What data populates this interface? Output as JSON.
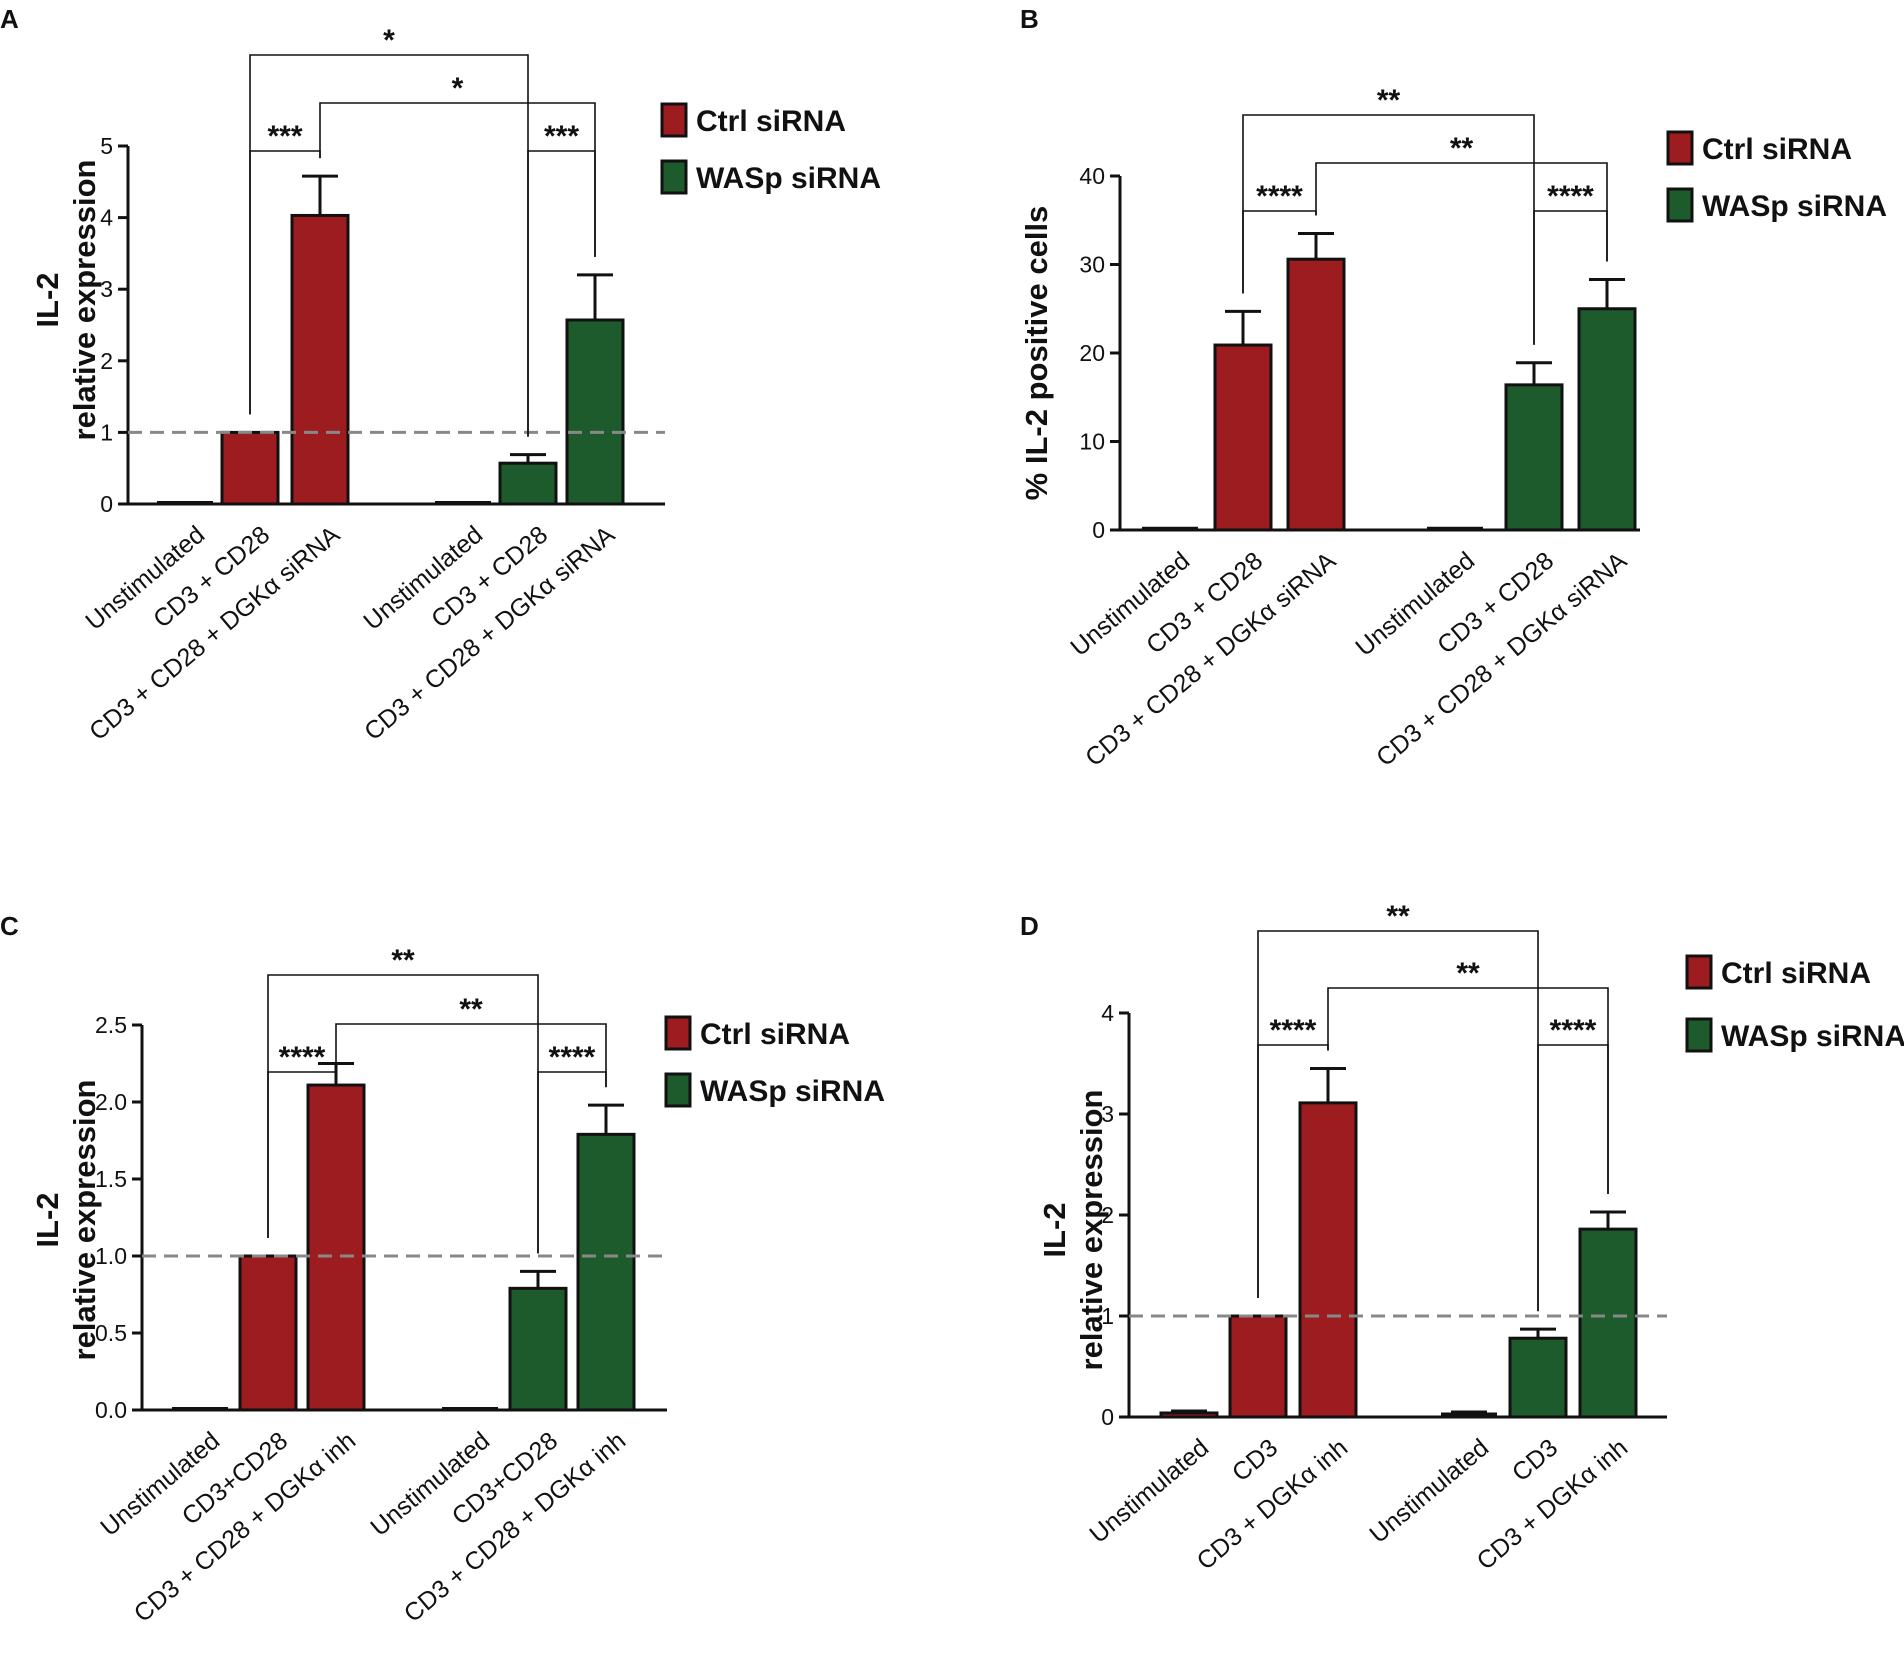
{
  "colors": {
    "ctrl": "#9c1c20",
    "wasp": "#1e5b2c",
    "axis": "#111111",
    "reference_line": "#888888"
  },
  "chart_data": [
    {
      "panel": "A",
      "type": "bar",
      "ylabel_lines": [
        "IL-2",
        "relative expression"
      ],
      "ylim": [
        0,
        5
      ],
      "yticks": [
        "0",
        "1",
        "2",
        "3",
        "4",
        "5"
      ],
      "reference_line": 1,
      "legend": [
        "Ctrl siRNA",
        "WASp siRNA"
      ],
      "categories": [
        "Unstimulated",
        "CD3 + CD28",
        "CD3 + CD28 + DGKα siRNA"
      ],
      "series": [
        {
          "name": "Ctrl siRNA",
          "values": [
            0.01,
            1.0,
            4.03
          ],
          "errors": [
            0.0,
            0.0,
            0.55
          ]
        },
        {
          "name": "WASp siRNA",
          "values": [
            0.0,
            0.57,
            2.57
          ],
          "errors": [
            0.0,
            0.12,
            0.63
          ]
        }
      ],
      "significance": [
        {
          "from": [
            0,
            1
          ],
          "to": [
            1,
            1
          ],
          "label": "*"
        },
        {
          "from": [
            0,
            2
          ],
          "to": [
            1,
            2
          ],
          "label": "*"
        },
        {
          "from": [
            0,
            1
          ],
          "to": [
            0,
            2
          ],
          "label": "***"
        },
        {
          "from": [
            1,
            1
          ],
          "to": [
            1,
            2
          ],
          "label": "***"
        }
      ]
    },
    {
      "panel": "B",
      "type": "bar",
      "ylabel_lines": [
        "% IL-2 positive cells"
      ],
      "ylim": [
        0,
        40
      ],
      "yticks": [
        "0",
        "10",
        "20",
        "30",
        "40"
      ],
      "legend": [
        "Ctrl siRNA",
        "WASp siRNA"
      ],
      "categories": [
        "Unstimulated",
        "CD3 + CD28",
        "CD3 + CD28 + DGKα siRNA"
      ],
      "series": [
        {
          "name": "Ctrl siRNA",
          "values": [
            0.2,
            20.9,
            30.6
          ],
          "errors": [
            0.0,
            3.8,
            2.9
          ]
        },
        {
          "name": "WASp siRNA",
          "values": [
            0.2,
            16.4,
            25.0
          ],
          "errors": [
            0.0,
            2.5,
            3.3
          ]
        }
      ],
      "significance": [
        {
          "from": [
            0,
            1
          ],
          "to": [
            1,
            1
          ],
          "label": "**"
        },
        {
          "from": [
            0,
            2
          ],
          "to": [
            1,
            2
          ],
          "label": "**"
        },
        {
          "from": [
            0,
            1
          ],
          "to": [
            0,
            2
          ],
          "label": "****"
        },
        {
          "from": [
            1,
            1
          ],
          "to": [
            1,
            2
          ],
          "label": "****"
        }
      ]
    },
    {
      "panel": "C",
      "type": "bar",
      "ylabel_lines": [
        "IL-2",
        "relative expression"
      ],
      "ylim": [
        0,
        2.5
      ],
      "yticks": [
        "0.0",
        "0.5",
        "1.0",
        "1.5",
        "2.0",
        "2.5"
      ],
      "reference_line": 1,
      "legend": [
        "Ctrl siRNA",
        "WASp siRNA"
      ],
      "categories": [
        "Unstimulated",
        "CD3+CD28",
        "CD3 + CD28 + DGKα inh"
      ],
      "series": [
        {
          "name": "Ctrl siRNA",
          "values": [
            0.01,
            1.0,
            2.11
          ],
          "errors": [
            0.0,
            0.0,
            0.14
          ]
        },
        {
          "name": "WASp siRNA",
          "values": [
            0.01,
            0.79,
            1.79
          ],
          "errors": [
            0.0,
            0.11,
            0.19
          ]
        }
      ],
      "significance": [
        {
          "from": [
            0,
            1
          ],
          "to": [
            1,
            1
          ],
          "label": "**"
        },
        {
          "from": [
            0,
            2
          ],
          "to": [
            1,
            2
          ],
          "label": "**"
        },
        {
          "from": [
            0,
            1
          ],
          "to": [
            0,
            2
          ],
          "label": "****"
        },
        {
          "from": [
            1,
            1
          ],
          "to": [
            1,
            2
          ],
          "label": "****"
        }
      ]
    },
    {
      "panel": "D",
      "type": "bar",
      "ylabel_lines": [
        "IL-2",
        "relative expression"
      ],
      "ylim": [
        0,
        4
      ],
      "yticks": [
        "0",
        "1",
        "2",
        "3",
        "4"
      ],
      "reference_line": 1,
      "legend": [
        "Ctrl siRNA",
        "WASp siRNA"
      ],
      "categories": [
        "Unstimulated",
        "CD3",
        "CD3 + DGKα inh"
      ],
      "series": [
        {
          "name": "Ctrl siRNA",
          "values": [
            0.04,
            1.0,
            3.11
          ],
          "errors": [
            0.02,
            0.0,
            0.34
          ]
        },
        {
          "name": "WASp siRNA",
          "values": [
            0.03,
            0.78,
            1.86
          ],
          "errors": [
            0.02,
            0.09,
            0.17
          ]
        }
      ],
      "significance": [
        {
          "from": [
            0,
            1
          ],
          "to": [
            1,
            1
          ],
          "label": "**"
        },
        {
          "from": [
            0,
            2
          ],
          "to": [
            1,
            2
          ],
          "label": "**"
        },
        {
          "from": [
            0,
            1
          ],
          "to": [
            0,
            2
          ],
          "label": "****"
        },
        {
          "from": [
            1,
            1
          ],
          "to": [
            1,
            2
          ],
          "label": "****"
        }
      ]
    }
  ]
}
